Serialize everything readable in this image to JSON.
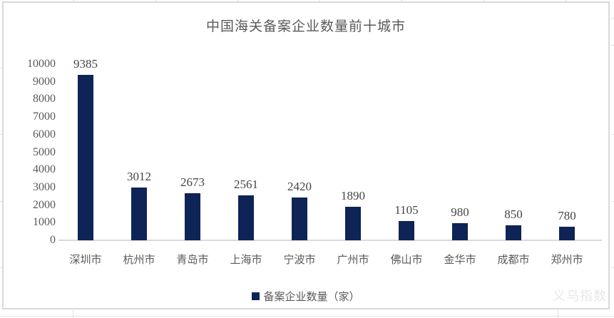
{
  "title": "中国海关备案企业数量前十城市",
  "legend": {
    "label": "备案企业数量（家）"
  },
  "watermark": "义乌指数",
  "colors": {
    "bar": "#0e2456",
    "axis": "#d9d9d9",
    "label_text": "#595959",
    "value_text": "#454545",
    "watermark_text": "#e7e7e7"
  },
  "chart_data": {
    "type": "bar",
    "title": "中国海关备案企业数量前十城市",
    "categories": [
      "深圳市",
      "杭州市",
      "青岛市",
      "上海市",
      "宁波市",
      "广州市",
      "佛山市",
      "金华市",
      "成都市",
      "郑州市"
    ],
    "values": [
      9385,
      3012,
      2673,
      2561,
      2420,
      1890,
      1105,
      980,
      850,
      780
    ],
    "series_name": "备案企业数量（家）",
    "xlabel": "",
    "ylabel": "",
    "ylim": [
      0,
      10000
    ],
    "yticks": [
      0,
      1000,
      2000,
      3000,
      4000,
      5000,
      6000,
      7000,
      8000,
      9000,
      10000
    ],
    "grid": false,
    "legend_position": "bottom",
    "data_labels": true
  }
}
